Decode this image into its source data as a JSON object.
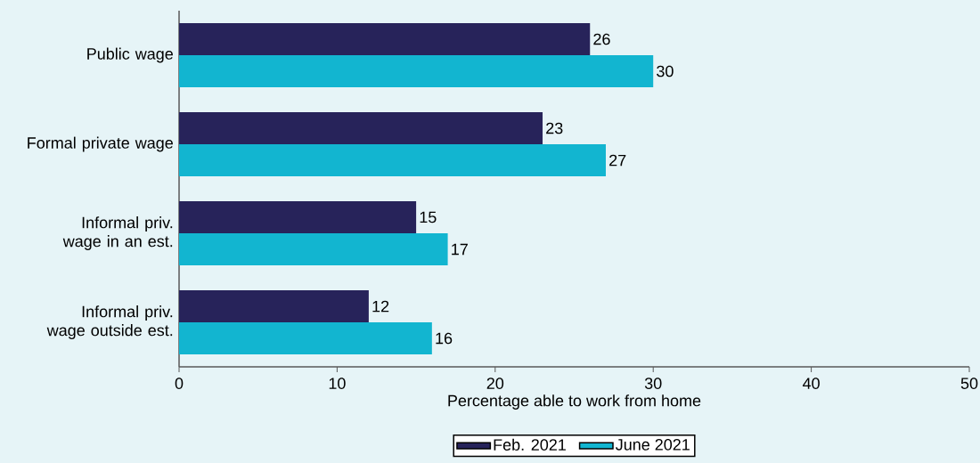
{
  "chart_data": {
    "type": "bar",
    "orientation": "horizontal",
    "categories": [
      "Public wage",
      "Formal private wage",
      "Informal priv. wage in an est.",
      "Informal priv. wage outside est."
    ],
    "series": [
      {
        "name": "Feb. 2021",
        "color": "#27235a",
        "values": [
          26,
          23,
          15,
          12
        ]
      },
      {
        "name": "June 2021",
        "color": "#12b5d0",
        "values": [
          30,
          27,
          17,
          16
        ]
      }
    ],
    "xlabel": "Percentage able to work from home",
    "xlim": [
      0,
      50
    ],
    "xticks": [
      0,
      10,
      20,
      30,
      40,
      50
    ],
    "data_labels": true,
    "legend": "bottom"
  }
}
